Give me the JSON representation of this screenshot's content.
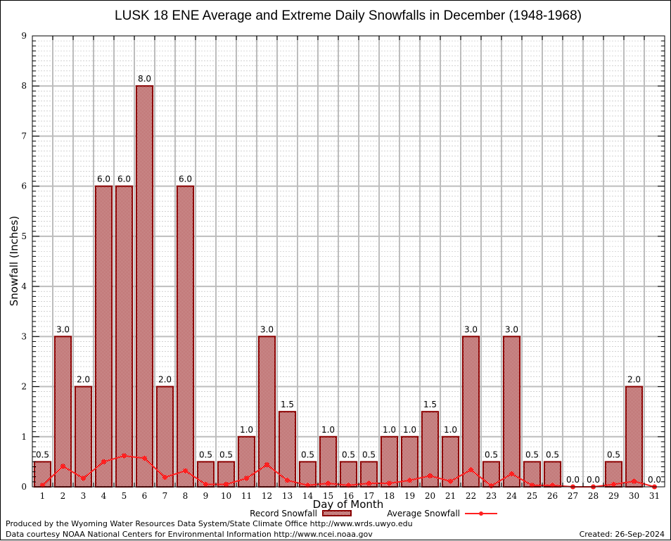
{
  "chart_data": {
    "type": "bar",
    "title": "LUSK 18 ENE Average and Extreme Daily Snowfalls in December (1948-1968)",
    "xlabel": "Day of Month",
    "ylabel": "Snowfall (Inches)",
    "ylim": [
      0,
      9
    ],
    "yticks": [
      0,
      1,
      2,
      3,
      4,
      5,
      6,
      7,
      8,
      9
    ],
    "grid": true,
    "legend_position": "bottom-center",
    "categories": [
      "1",
      "2",
      "3",
      "4",
      "5",
      "6",
      "7",
      "8",
      "9",
      "10",
      "11",
      "12",
      "13",
      "14",
      "15",
      "16",
      "17",
      "18",
      "19",
      "20",
      "21",
      "22",
      "23",
      "24",
      "25",
      "26",
      "27",
      "28",
      "29",
      "30",
      "31"
    ],
    "series": [
      {
        "name": "Record Snowfall",
        "type": "bar",
        "color": "#8b0000",
        "values": [
          0.5,
          3.0,
          2.0,
          6.0,
          6.0,
          8.0,
          2.0,
          6.0,
          0.5,
          0.5,
          1.0,
          3.0,
          1.5,
          0.5,
          1.0,
          0.5,
          0.5,
          1.0,
          1.0,
          1.5,
          1.0,
          3.0,
          0.5,
          3.0,
          0.5,
          0.5,
          0.0,
          0.0,
          0.5,
          2.0,
          0.0
        ],
        "labels": [
          "0.5",
          "3.0",
          "2.0",
          "6.0",
          "6.0",
          "8.0",
          "2.0",
          "6.0",
          "0.5",
          "0.5",
          "1.0",
          "3.0",
          "1.5",
          "0.5",
          "1.0",
          "0.5",
          "0.5",
          "1.0",
          "1.0",
          "1.5",
          "1.0",
          "3.0",
          "0.5",
          "3.0",
          "0.5",
          "0.5",
          "0.0",
          "0.0",
          "0.5",
          "2.0",
          "0.0"
        ]
      },
      {
        "name": "Average Snowfall",
        "type": "line",
        "color": "#ff2020",
        "values": [
          0.03,
          0.41,
          0.17,
          0.5,
          0.62,
          0.57,
          0.19,
          0.32,
          0.05,
          0.05,
          0.17,
          0.44,
          0.13,
          0.03,
          0.07,
          0.03,
          0.07,
          0.07,
          0.13,
          0.22,
          0.11,
          0.34,
          0.02,
          0.26,
          0.03,
          0.03,
          0.0,
          0.0,
          0.05,
          0.11,
          0.0
        ]
      }
    ]
  },
  "footer": {
    "line1": "Produced by the Wyoming Water Resources Data System/State Climate Office http://www.wrds.uwyo.edu",
    "line2": "Data courtesy NOAA National Centers for Environmental Information http://www.ncei.noaa.gov",
    "created": "Created: 26-Sep-2024"
  }
}
